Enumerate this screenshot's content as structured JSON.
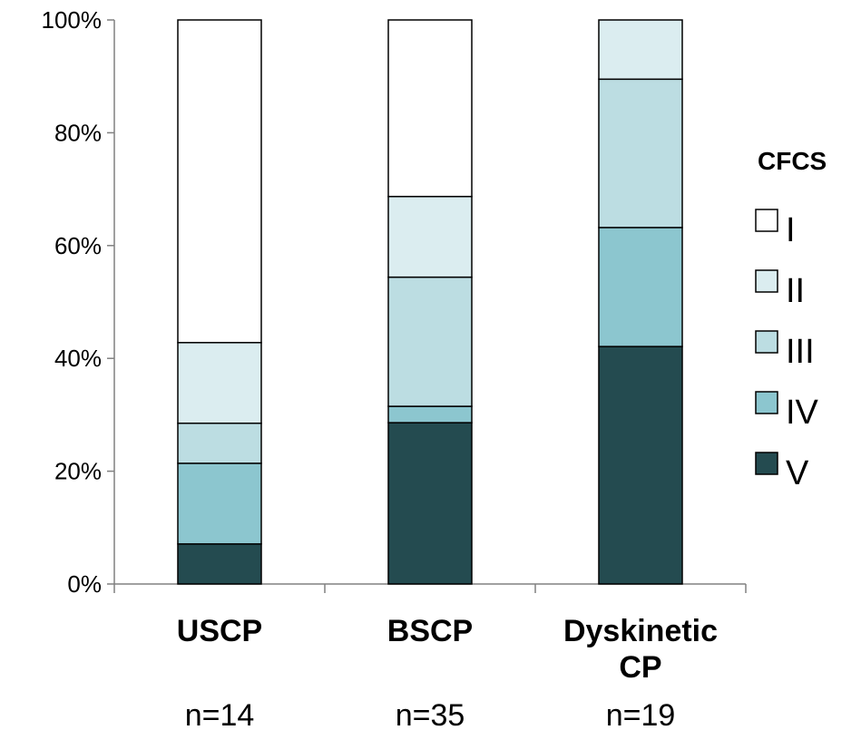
{
  "chart_data": {
    "type": "bar",
    "stacked": true,
    "categories": [
      "USCP",
      "BSCP",
      "Dyskinetic CP"
    ],
    "sample_sizes": [
      "n=14",
      "n=35",
      "n=19"
    ],
    "ylim": [
      0,
      100
    ],
    "y_ticks": [
      "0%",
      "20%",
      "40%",
      "60%",
      "80%",
      "100%"
    ],
    "y_tick_values": [
      0,
      20,
      40,
      60,
      80,
      100
    ],
    "legend_title": "CFCS",
    "legend_placement": "right",
    "series": [
      {
        "name": "V",
        "color": "#244b50",
        "values": [
          7.1,
          28.6,
          42.1
        ]
      },
      {
        "name": "IV",
        "color": "#8cc6cf",
        "values": [
          14.3,
          2.9,
          21.1
        ]
      },
      {
        "name": "III",
        "color": "#bcdde2",
        "values": [
          7.1,
          22.9,
          26.3
        ]
      },
      {
        "name": "II",
        "color": "#dbedf0",
        "values": [
          14.3,
          14.3,
          10.5
        ]
      },
      {
        "name": "I",
        "color": "#ffffff",
        "values": [
          57.2,
          31.3,
          0
        ]
      }
    ],
    "legend_order": [
      "I",
      "II",
      "III",
      "IV",
      "V"
    ],
    "grid": false
  }
}
